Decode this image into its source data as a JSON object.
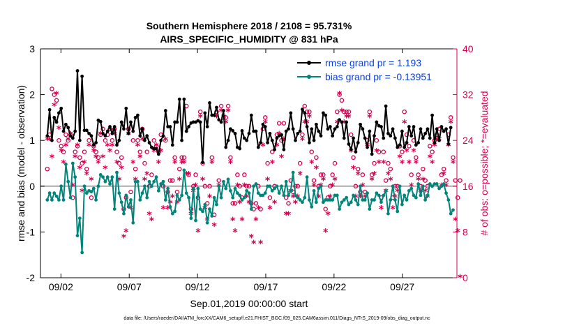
{
  "chart_data": {
    "type": "line",
    "title": "Southern Hemisphere 2018 / 2108 = 95.731%",
    "subtitle": "AIRS_SPECIFIC_HUMIDITY @ 831 hPa",
    "xlabel": "Sep.01,2019 00:00:00 start",
    "ylabel": "rmse and bias (model - observation)",
    "y2label": "# of obs: o=possible; *=evaluated",
    "footer": "data file: /Users/raeder/DAI/ATM_forcXX/CAM6_setup/f.e21.FHIST_BGC.f09_025.CAM6assim.011/Diags_NTrS_2019-09/obs_diag_output.nc",
    "xlim": [
      0.5,
      31
    ],
    "ylim": [
      -2,
      3
    ],
    "y2lim": [
      0,
      40
    ],
    "xticks": [
      2,
      7,
      12,
      17,
      22,
      27
    ],
    "xtick_labels": [
      "09/02",
      "09/07",
      "09/12",
      "09/17",
      "09/22",
      "09/27"
    ],
    "yticks": [
      -2,
      -1,
      0,
      1,
      2,
      3
    ],
    "ytick_labels": [
      "-2",
      "-1",
      "0",
      "1",
      "2",
      "3"
    ],
    "y2ticks": [
      0,
      8,
      16,
      24,
      32,
      40
    ],
    "y2tick_labels": [
      "0",
      "8",
      "16",
      "24",
      "32",
      "40"
    ],
    "legend_position": "top-right",
    "colors": {
      "rmse": "#000000",
      "bias": "#00857b",
      "obs": "#d6004f",
      "zero_line": "#aaaaaa",
      "legend_text": "#0a3fe0"
    },
    "series": [
      {
        "name": "rmse grand pr = 1.193",
        "axis": "left",
        "values": [
          1.1,
          1.67,
          1.0,
          1.5,
          1.4,
          1.6,
          1.7,
          1.2,
          1.35,
          1.28,
          1.1,
          1.05,
          1.2,
          2.52,
          1.0,
          2.4,
          1.22,
          1.22,
          1.15,
          1.1,
          0.9,
          0.95,
          1.44,
          1.41,
          1.15,
          1.1,
          1.2,
          1.3,
          1.15,
          1.3,
          0.9,
          1.0,
          1.4,
          1.25,
          1.7,
          1.15,
          1.4,
          1.2,
          1.5,
          1.55,
          1.1,
          1.25,
          1.0,
          1.1,
          0.95,
          0.85,
          0.82,
          0.82,
          0.7,
          1.0,
          1.1,
          1.65,
          1.3,
          1.3,
          0.9,
          1.4,
          1.4,
          1.9,
          1.0,
          1.9,
          1.2,
          1.3,
          1.38,
          1.4,
          1.4,
          1.43,
          1.4,
          0.52,
          1.6,
          1.3,
          1.82,
          1.55,
          1.55,
          1.72,
          1.45,
          1.4,
          1.65,
          0.85,
          1.0,
          1.25,
          1.21,
          1.15,
          0.85,
          0.82,
          1.21,
          1.05,
          1.0,
          1.15,
          1.55,
          1.2,
          1.2,
          0.85,
          0.95,
          1.35,
          1.3,
          0.95,
          1.15,
          1.0,
          0.8,
          1.05,
          1.1,
          1.12,
          0.8,
          1.2,
          1.25,
          1.6,
          1.25,
          1.0,
          1.15,
          1.2,
          1.68,
          1.6,
          1.3,
          0.95,
          1.25,
          1.0,
          1.35,
          1.2,
          1.1,
          1.6,
          1.55,
          1.25,
          1.3,
          1.1,
          1.25,
          1.3,
          1.45,
          1.4,
          1.05,
          1.4,
          0.92,
          0.8,
          1.05,
          0.75,
          0.95,
          1.35,
          1.25,
          1.05,
          0.85,
          1.2,
          0.7,
          1.1,
          1.4,
          1.32,
          1.3,
          1.05,
          1.75,
          1.15,
          1.1,
          1.25,
          1.05,
          0.85,
          0.9,
          1.2,
          0.85,
          0.95,
          1.3,
          1.1,
          1.3,
          0.9,
          0.95,
          1.25,
          1.05,
          1.15,
          1.25,
          1.05,
          1.55,
          0.95,
          1.25,
          1.0,
          1.3,
          1.2,
          1.25,
          0.92,
          1.28
        ]
      },
      {
        "name": "bias grand pr = -0.13951",
        "axis": "left",
        "values": [
          -0.3,
          -0.15,
          -0.3,
          -0.15,
          -0.22,
          -0.3,
          0.0,
          -0.3,
          0.48,
          0.1,
          -0.25,
          0.5,
          0.2,
          -1.08,
          -0.7,
          -1.45,
          0.0,
          -0.15,
          -0.1,
          -0.12,
          -0.05,
          -0.3,
          0.0,
          0.25,
          0.2,
          0.1,
          0.2,
          0.05,
          0.2,
          -0.5,
          0.3,
          -0.15,
          -0.35,
          -0.6,
          -0.2,
          -0.45,
          -0.3,
          -0.8,
          0.1,
          0.1,
          -0.3,
          -0.15,
          0.0,
          -0.25,
          0.1,
          0.0,
          0.1,
          0.2,
          -0.1,
          0.05,
          0.1,
          -0.3,
          -0.05,
          -0.45,
          -0.6,
          -0.55,
          -0.2,
          -0.3,
          -0.2,
          0.35,
          -0.15,
          -0.25,
          -0.7,
          -0.05,
          -0.75,
          -0.05,
          -0.5,
          -0.55,
          -0.4,
          -0.8,
          -0.5,
          -0.65,
          -0.25,
          -0.4,
          0.0,
          -0.25,
          0.1,
          -0.05,
          0.15,
          -0.1,
          -0.25,
          -0.05,
          -0.15,
          -0.2,
          -0.3,
          -0.25,
          -0.1,
          -0.15,
          -0.5,
          0.0,
          0.05,
          -0.15,
          -0.2,
          -0.2,
          -0.15,
          0.0,
          0.0,
          -0.1,
          -0.05,
          0.0,
          -0.15,
          0.0,
          -0.2,
          0.1,
          -0.2,
          -0.1,
          0.3,
          -0.2,
          -0.25,
          -0.3,
          -0.35,
          -0.25,
          0.2,
          -0.3,
          -0.45,
          -0.1,
          -0.35,
          -0.05,
          0.0,
          -0.35,
          -0.3,
          -0.3,
          -0.3,
          -0.3,
          -0.2,
          -0.2,
          -0.5,
          -0.35,
          -0.3,
          -0.25,
          -0.4,
          -0.35,
          -0.2,
          -0.3,
          -0.4,
          0.0,
          -0.3,
          -0.3,
          -0.15,
          -0.5,
          -0.3,
          -0.3,
          -0.15,
          -0.2,
          -0.35,
          -0.2,
          -0.1,
          -0.6,
          -0.3,
          0.0,
          -0.3,
          -0.55,
          0.0,
          -0.4,
          -0.2,
          -0.3,
          -0.1,
          -0.05,
          -0.2,
          -0.25,
          0.05,
          -0.2,
          0.0,
          -0.3,
          -0.2,
          0.05,
          0.0,
          0.05,
          0.05,
          -0.05,
          0.0,
          0.05,
          -0.15,
          -0.3,
          -0.6,
          -0.52
        ]
      },
      {
        "name": "obs possible (o)",
        "axis": "right",
        "values": [
          19,
          25,
          33,
          32,
          31,
          24,
          23,
          22,
          25,
          24,
          25,
          14,
          22,
          23,
          21,
          20,
          22,
          19,
          24,
          14,
          23,
          22,
          21,
          25,
          26,
          24,
          25,
          26,
          24,
          26,
          22,
          20,
          21,
          12,
          14,
          26,
          15,
          24,
          19,
          24,
          22,
          26,
          20,
          22,
          16,
          18,
          24,
          23,
          22,
          25,
          16,
          24,
          15,
          17,
          17,
          21,
          15,
          19,
          21,
          21,
          30,
          18,
          12,
          16,
          18,
          14,
          29,
          20,
          16,
          13,
          16,
          21,
          11,
          29,
          17,
          30,
          28,
          28,
          30,
          21,
          13,
          13,
          18,
          16,
          14,
          18,
          16,
          16,
          13,
          12,
          13,
          16,
          12,
          26,
          28,
          20,
          14,
          22,
          16,
          25,
          27,
          24,
          27,
          14,
          13,
          17,
          15,
          16,
          16,
          20,
          25,
          30,
          29,
          29,
          22,
          17,
          21,
          16,
          18,
          18,
          12,
          14,
          16,
          18,
          20,
          29,
          32,
          31,
          29,
          29,
          29,
          25,
          21,
          16,
          19,
          15,
          18,
          15,
          24,
          29,
          18,
          20,
          24,
          22,
          14,
          22,
          17,
          20,
          19,
          14,
          16,
          16,
          23,
          22,
          29,
          25,
          23,
          18,
          24,
          21,
          18,
          16,
          19,
          17,
          16,
          23,
          22,
          24,
          25,
          26,
          18,
          19,
          17,
          25,
          28,
          21,
          17,
          14,
          17
        ]
      },
      {
        "name": "obs evaluated (*)",
        "axis": "right",
        "values": [
          24,
          24,
          21,
          30,
          32,
          26,
          22,
          20,
          23,
          24,
          25,
          16,
          21,
          23,
          19,
          15,
          20,
          18,
          23,
          17,
          22,
          21,
          20,
          25,
          21,
          19,
          23,
          22,
          23,
          25,
          20,
          17,
          19,
          7,
          8,
          25,
          12,
          20,
          17,
          23,
          21,
          24,
          17,
          18,
          11,
          10,
          22,
          23,
          20,
          22,
          12,
          24,
          12,
          13,
          14,
          20,
          13,
          17,
          20,
          20,
          18,
          18,
          11,
          15,
          16,
          8,
          28,
          17,
          12,
          10,
          14,
          20,
          9,
          28,
          16,
          29,
          28,
          27,
          29,
          20,
          10,
          8,
          16,
          13,
          10,
          16,
          14,
          13,
          7,
          6,
          10,
          12,
          6,
          23,
          27,
          17,
          12,
          20,
          13,
          23,
          25,
          21,
          24,
          11,
          11,
          15,
          14,
          13,
          14,
          18,
          24,
          27,
          27,
          28,
          20,
          16,
          19,
          14,
          16,
          17,
          8,
          11,
          14,
          16,
          17,
          27,
          32,
          29,
          27,
          28,
          28,
          22,
          19,
          14,
          18,
          14,
          16,
          14,
          23,
          28,
          17,
          18,
          22,
          20,
          12,
          20,
          15,
          18,
          17,
          12,
          14,
          15,
          21,
          20,
          27,
          22,
          20,
          16,
          22,
          20,
          17,
          15,
          17,
          15,
          14,
          21,
          20,
          23,
          24,
          24,
          16,
          18,
          16,
          23,
          27,
          20,
          10,
          8,
          0
        ]
      }
    ]
  }
}
